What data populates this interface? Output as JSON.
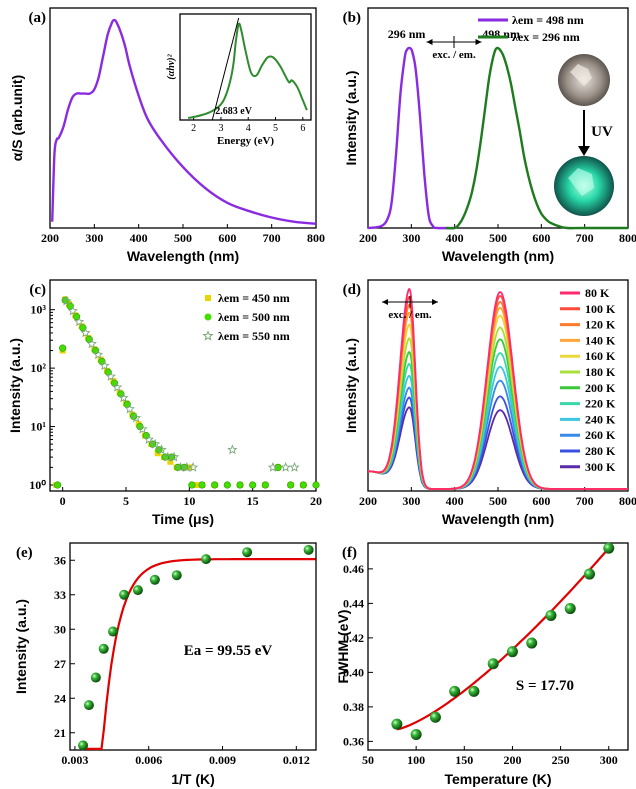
{
  "chart_data": [
    {
      "panel": "(a)",
      "type": "line",
      "xlabel": "Wavelength (nm)",
      "ylabel": "α/S (arb.unit)",
      "xlim": [
        200,
        800
      ],
      "ylim": [
        0,
        1.0
      ],
      "xticks": [
        200,
        300,
        400,
        500,
        600,
        700,
        800
      ],
      "series": [
        {
          "color": "#8a2be2",
          "x": [
            205,
            210,
            215,
            220,
            230,
            240,
            250,
            260,
            270,
            280,
            290,
            300,
            310,
            320,
            330,
            340,
            345,
            350,
            360,
            370,
            380,
            400,
            420,
            450,
            500,
            550,
            600,
            650,
            700,
            750,
            800
          ],
          "y": [
            0.03,
            0.35,
            0.42,
            0.43,
            0.48,
            0.56,
            0.62,
            0.64,
            0.64,
            0.64,
            0.64,
            0.66,
            0.72,
            0.82,
            0.92,
            0.98,
            0.99,
            0.98,
            0.93,
            0.86,
            0.77,
            0.63,
            0.52,
            0.42,
            0.29,
            0.19,
            0.12,
            0.08,
            0.05,
            0.03,
            0.02
          ]
        }
      ],
      "inset": {
        "xlabel": "Energy (eV)",
        "ylabel": "(αhv)²",
        "xlim": [
          1.5,
          6.3
        ],
        "xticks": [
          2,
          3,
          4,
          5,
          6
        ],
        "annotation": "2.683 eV",
        "curve": {
          "color": "#2e8b2e",
          "x": [
            1.8,
            2.0,
            2.3,
            2.6,
            2.9,
            3.1,
            3.3,
            3.45,
            3.55,
            3.65,
            3.75,
            3.9,
            4.1,
            4.3,
            4.5,
            4.7,
            4.85,
            5.0,
            5.2,
            5.35,
            5.5,
            5.6,
            5.8,
            6.0,
            6.15
          ],
          "y": [
            0.02,
            0.03,
            0.05,
            0.08,
            0.13,
            0.2,
            0.35,
            0.55,
            0.8,
            0.97,
            0.9,
            0.7,
            0.48,
            0.45,
            0.55,
            0.63,
            0.64,
            0.61,
            0.53,
            0.45,
            0.38,
            0.4,
            0.33,
            0.2,
            0.1
          ]
        },
        "fit": {
          "x": [
            2.683,
            3.65
          ],
          "y": [
            0,
            1.03
          ]
        }
      }
    },
    {
      "panel": "(b)",
      "type": "line",
      "xlabel": "Wavelength (nm)",
      "ylabel": "Intensity (a.u.)",
      "xlim": [
        200,
        800
      ],
      "xticks": [
        200,
        300,
        400,
        500,
        600,
        700,
        800
      ],
      "series": [
        {
          "name": "λem = 498 nm",
          "color": "#8a2be2",
          "peak": 296,
          "x": [
            200,
            230,
            245,
            255,
            265,
            275,
            285,
            290,
            296,
            302,
            310,
            320,
            330,
            340,
            350,
            360,
            400
          ],
          "y": [
            0.0,
            0.01,
            0.05,
            0.15,
            0.42,
            0.75,
            0.95,
            0.99,
            1.0,
            0.98,
            0.88,
            0.62,
            0.3,
            0.07,
            0.01,
            0.0,
            0.0
          ]
        },
        {
          "name": "λex = 296 nm",
          "color": "#1e7b1e",
          "peak": 498,
          "x": [
            380,
            400,
            410,
            420,
            430,
            440,
            450,
            460,
            470,
            480,
            490,
            498,
            510,
            520,
            530,
            540,
            550,
            560,
            570,
            580,
            590,
            600,
            610,
            620,
            640,
            660,
            700,
            800
          ],
          "y": [
            0.0,
            0.0,
            0.02,
            0.06,
            0.12,
            0.2,
            0.32,
            0.48,
            0.66,
            0.84,
            0.96,
            1.0,
            0.97,
            0.9,
            0.8,
            0.67,
            0.54,
            0.4,
            0.29,
            0.2,
            0.13,
            0.08,
            0.05,
            0.03,
            0.01,
            0.0,
            0.0,
            0.0
          ]
        }
      ],
      "annotations": [
        "296 nm",
        "498 nm",
        "exc. / em.",
        "UV"
      ]
    },
    {
      "panel": "(c)",
      "type": "scatter",
      "xlabel": "Time (μs)",
      "ylabel": "Intensity (a.u.)",
      "xlim": [
        -1,
        20
      ],
      "yscale": "log",
      "ylim": [
        0.8,
        2000
      ],
      "xticks": [
        0,
        5,
        10,
        15,
        20
      ],
      "yticks": [
        "10⁰",
        "10¹",
        "10²",
        "10³"
      ],
      "series": [
        {
          "name": "λem = 450 nm",
          "color": "#e8d400",
          "marker": "square",
          "x": [
            -0.5,
            0,
            0.2,
            0.5,
            1,
            1.5,
            2,
            2.5,
            3,
            3.5,
            4,
            4.5,
            5,
            5.5,
            6,
            6.5,
            7,
            7.5,
            8,
            8.5,
            9,
            9.5,
            10,
            10.5,
            11,
            12,
            14,
            16,
            17,
            18,
            19
          ],
          "y": [
            1,
            200,
            1500,
            1250,
            800,
            520,
            330,
            210,
            140,
            90,
            60,
            38,
            25,
            16,
            11,
            7,
            5,
            3.5,
            3,
            2.5,
            2,
            2,
            2,
            1,
            1,
            1,
            1,
            1,
            2,
            1,
            1
          ]
        },
        {
          "name": "λem = 500 nm",
          "color": "#44dd00",
          "marker": "circle",
          "x": [
            -0.4,
            0,
            0.2,
            0.6,
            1.1,
            1.6,
            2.1,
            2.6,
            3.1,
            3.6,
            4.1,
            4.6,
            5.1,
            5.6,
            6.1,
            6.6,
            7.1,
            7.6,
            8.1,
            8.6,
            9.1,
            9.6,
            10.2,
            11,
            12,
            13,
            14,
            15,
            16,
            17,
            18,
            19,
            20
          ],
          "y": [
            1,
            220,
            1450,
            1150,
            760,
            490,
            310,
            200,
            130,
            85,
            55,
            36,
            24,
            15,
            10,
            7,
            5,
            4,
            3,
            3,
            2,
            2,
            1,
            1,
            1,
            1,
            1,
            1,
            1,
            2,
            1,
            1,
            1
          ]
        },
        {
          "name": "λem = 550 nm",
          "color": "#7aa87a",
          "marker": "star",
          "x": [
            0.3,
            0.8,
            1.3,
            1.8,
            2.3,
            2.8,
            3.3,
            3.8,
            4.3,
            4.8,
            5.3,
            5.8,
            6.3,
            6.8,
            7.3,
            7.8,
            8.3,
            8.8,
            9.3,
            9.8,
            10.3,
            13.4,
            16.6,
            17.6,
            18.3
          ],
          "y": [
            1400,
            950,
            620,
            400,
            260,
            170,
            110,
            72,
            47,
            31,
            20,
            14,
            9,
            6,
            5,
            4,
            3,
            3,
            2,
            2,
            2,
            4,
            2,
            2,
            2
          ]
        }
      ]
    },
    {
      "panel": "(d)",
      "type": "line",
      "xlabel": "Wavelength (nm)",
      "ylabel": "Intensity (a.u.)",
      "xlim": [
        200,
        800
      ],
      "xticks": [
        200,
        300,
        400,
        500,
        600,
        700,
        800
      ],
      "annotations": [
        "exc. / em."
      ],
      "legend": [
        "80 K",
        "100 K",
        "120 K",
        "140 K",
        "160 K",
        "180 K",
        "200 K",
        "220 K",
        "240 K",
        "260 K",
        "280 K",
        "300 K"
      ],
      "colors": [
        "#ff2a6d",
        "#ff4a3a",
        "#ff7a2a",
        "#ffa63a",
        "#e8d83a",
        "#a8e03a",
        "#3ac83a",
        "#3ad8a8",
        "#3ac8e0",
        "#3a88e8",
        "#3a50e0",
        "#5a2aa8"
      ],
      "exc_peaks": [
        1.0,
        0.96,
        0.92,
        0.88,
        0.82,
        0.75,
        0.68,
        0.62,
        0.56,
        0.5,
        0.45,
        0.4
      ],
      "em_peaks": [
        1.0,
        0.98,
        0.95,
        0.92,
        0.88,
        0.82,
        0.76,
        0.69,
        0.62,
        0.55,
        0.47,
        0.4
      ]
    },
    {
      "panel": "(e)",
      "type": "scatter",
      "xlabel": "1/T (K)",
      "ylabel": "Intensity (a.u.)",
      "xlim": [
        0.0028,
        0.0128
      ],
      "ylim": [
        19.5,
        37.5
      ],
      "xticks": [
        "0.003",
        "0.006",
        "0.009",
        "0.012"
      ],
      "yticks": [
        21,
        24,
        27,
        30,
        33,
        36
      ],
      "annotation": "Ea = 99.55 eV",
      "points": {
        "color": "#2e9e2e",
        "x": [
          0.00333,
          0.00357,
          0.00385,
          0.00417,
          0.00455,
          0.005,
          0.00556,
          0.00625,
          0.00714,
          0.00833,
          0.01,
          0.0125
        ],
        "y": [
          19.9,
          23.4,
          25.8,
          28.3,
          29.8,
          33.0,
          33.4,
          34.3,
          34.7,
          36.1,
          36.7,
          36.9
        ]
      },
      "fit": {
        "color": "#e00000"
      }
    },
    {
      "panel": "(f)",
      "type": "scatter",
      "xlabel": "Temperature (K)",
      "ylabel": "FWHM (eV)",
      "xlim": [
        50,
        320
      ],
      "ylim": [
        0.355,
        0.475
      ],
      "xticks": [
        50,
        100,
        150,
        200,
        250,
        300
      ],
      "yticks": [
        "0.36",
        "0.38",
        "0.40",
        "0.42",
        "0.44",
        "0.46"
      ],
      "annotation": "S = 17.70",
      "points": {
        "color": "#2e9e2e",
        "x": [
          80,
          100,
          120,
          140,
          160,
          180,
          200,
          220,
          240,
          260,
          280,
          300
        ],
        "y": [
          0.37,
          0.364,
          0.374,
          0.389,
          0.389,
          0.405,
          0.412,
          0.417,
          0.433,
          0.437,
          0.457,
          0.472
        ]
      },
      "fit": {
        "color": "#e00000"
      }
    }
  ]
}
